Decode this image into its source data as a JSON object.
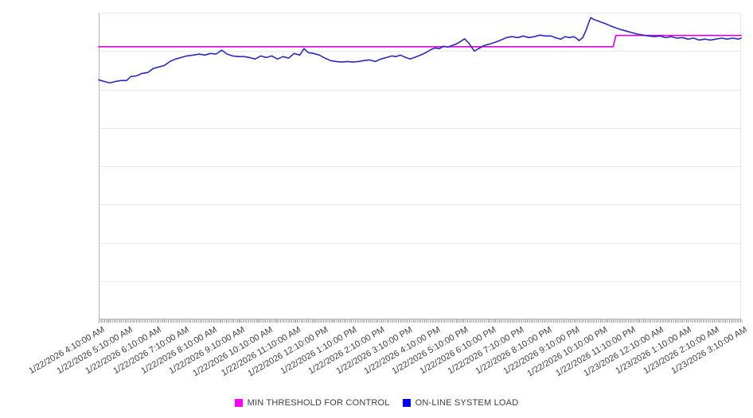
{
  "chart_data": {
    "type": "line",
    "title": "",
    "xlabel": "",
    "ylabel": "",
    "y_axis": {
      "tick_labels_visible": false,
      "estimated_range": [
        0,
        100
      ],
      "gridline_divisions": 8,
      "grid": "horizontal"
    },
    "legend_position": "bottom-center",
    "x_labels": [
      "1/22/2026 4:10:00 AM",
      "1/22/2026 5:10:00 AM",
      "1/22/2026 6:10:00 AM",
      "1/22/2026 7:10:00 AM",
      "1/22/2026 8:10:00 AM",
      "1/22/2026 9:10:00 AM",
      "1/22/2026 10:10:00 AM",
      "1/22/2026 11:10:00 AM",
      "1/22/2026 12:10:00 PM",
      "1/22/2026 1:10:00 PM",
      "1/22/2026 2:10:00 PM",
      "1/22/2026 3:10:00 PM",
      "1/22/2026 4:10:00 PM",
      "1/22/2026 5:10:00 PM",
      "1/22/2026 6:10:00 PM",
      "1/22/2026 7:10:00 PM",
      "1/22/2026 8:10:00 PM",
      "1/22/2026 9:10:00 PM",
      "1/22/2026 10:10:00 PM",
      "1/22/2026 11:10:00 PM",
      "1/23/2026 12:10:00 AM",
      "1/23/2026 1:10:00 AM",
      "1/23/2026 2:10:00 AM",
      "1/23/2026 3:10:00 AM"
    ],
    "x_unit_hours_per_label": 1,
    "series": [
      {
        "name": "MIN THRESHOLD FOR CONTROL",
        "color": "#DB00DB",
        "legend_color": "#FF00FF",
        "shape": "step",
        "points": [
          [
            0,
            88.9
          ],
          [
            18.42,
            88.9
          ],
          [
            18.52,
            92.6
          ],
          [
            23,
            92.6
          ]
        ]
      },
      {
        "name": "ON-LINE SYSTEM LOAD",
        "color": "#2A2AC0",
        "legend_color": "#0000EE",
        "shape": "jagged",
        "points": [
          [
            0,
            78.1
          ],
          [
            0.2,
            77.6
          ],
          [
            0.4,
            77.1
          ],
          [
            0.6,
            77.6
          ],
          [
            0.8,
            77.9
          ],
          [
            1,
            77.9
          ],
          [
            1.15,
            79.2
          ],
          [
            1.35,
            79.4
          ],
          [
            1.55,
            80.2
          ],
          [
            1.75,
            80.5
          ],
          [
            1.95,
            81.8
          ],
          [
            2.15,
            82.3
          ],
          [
            2.35,
            82.8
          ],
          [
            2.55,
            84.1
          ],
          [
            2.75,
            84.9
          ],
          [
            2.95,
            85.4
          ],
          [
            3.15,
            85.9
          ],
          [
            3.4,
            86.2
          ],
          [
            3.6,
            86.5
          ],
          [
            3.8,
            86.2
          ],
          [
            4,
            86.7
          ],
          [
            4.2,
            86.5
          ],
          [
            4.4,
            87.8
          ],
          [
            4.6,
            86.5
          ],
          [
            4.8,
            85.9
          ],
          [
            5,
            85.7
          ],
          [
            5.2,
            85.7
          ],
          [
            5.4,
            85.4
          ],
          [
            5.6,
            84.9
          ],
          [
            5.8,
            85.9
          ],
          [
            6,
            85.4
          ],
          [
            6.2,
            85.9
          ],
          [
            6.4,
            84.9
          ],
          [
            6.6,
            85.7
          ],
          [
            6.8,
            85.2
          ],
          [
            7,
            86.7
          ],
          [
            7.2,
            86.2
          ],
          [
            7.35,
            88.3
          ],
          [
            7.5,
            87
          ],
          [
            7.7,
            86.7
          ],
          [
            7.9,
            86.2
          ],
          [
            8.1,
            85.2
          ],
          [
            8.3,
            84.4
          ],
          [
            8.5,
            84.1
          ],
          [
            8.7,
            83.9
          ],
          [
            8.9,
            84.1
          ],
          [
            9.1,
            83.9
          ],
          [
            9.3,
            84.1
          ],
          [
            9.5,
            84.4
          ],
          [
            9.7,
            84.6
          ],
          [
            9.9,
            84.1
          ],
          [
            10.1,
            84.9
          ],
          [
            10.3,
            85.4
          ],
          [
            10.5,
            85.9
          ],
          [
            10.65,
            85.7
          ],
          [
            10.8,
            86.2
          ],
          [
            11,
            85.4
          ],
          [
            11.15,
            84.9
          ],
          [
            11.3,
            85.4
          ],
          [
            11.45,
            85.9
          ],
          [
            11.6,
            86.5
          ],
          [
            11.75,
            87.2
          ],
          [
            11.9,
            88
          ],
          [
            12.05,
            88.5
          ],
          [
            12.2,
            88.3
          ],
          [
            12.35,
            89.1
          ],
          [
            12.5,
            88.8
          ],
          [
            12.65,
            89.3
          ],
          [
            12.8,
            89.8
          ],
          [
            12.95,
            90.6
          ],
          [
            13.1,
            91.5
          ],
          [
            13.25,
            90.1
          ],
          [
            13.35,
            88.8
          ],
          [
            13.45,
            87.5
          ],
          [
            13.6,
            88.3
          ],
          [
            13.8,
            89.3
          ],
          [
            14,
            89.8
          ],
          [
            14.2,
            90.4
          ],
          [
            14.4,
            91.1
          ],
          [
            14.6,
            91.9
          ],
          [
            14.8,
            92.2
          ],
          [
            15,
            91.9
          ],
          [
            15.2,
            92.4
          ],
          [
            15.4,
            91.9
          ],
          [
            15.6,
            92.2
          ],
          [
            15.8,
            92.7
          ],
          [
            16,
            92.4
          ],
          [
            16.2,
            92.4
          ],
          [
            16.4,
            91.7
          ],
          [
            16.55,
            91.4
          ],
          [
            16.7,
            92.2
          ],
          [
            16.85,
            91.9
          ],
          [
            17,
            92.2
          ],
          [
            17.1,
            91.7
          ],
          [
            17.2,
            90.9
          ],
          [
            17.33,
            91.9
          ],
          [
            17.45,
            94.3
          ],
          [
            17.55,
            96.9
          ],
          [
            17.62,
            98.4
          ],
          [
            17.75,
            97.7
          ],
          [
            17.85,
            97.4
          ],
          [
            18,
            96.9
          ],
          [
            18.15,
            96.4
          ],
          [
            18.3,
            95.8
          ],
          [
            18.5,
            95.1
          ],
          [
            18.7,
            94.5
          ],
          [
            18.9,
            94
          ],
          [
            19.1,
            93.5
          ],
          [
            19.3,
            93
          ],
          [
            19.5,
            92.7
          ],
          [
            19.7,
            92.4
          ],
          [
            19.9,
            92.2
          ],
          [
            20.1,
            92.4
          ],
          [
            20.3,
            91.9
          ],
          [
            20.5,
            92.2
          ],
          [
            20.7,
            91.7
          ],
          [
            20.9,
            91.9
          ],
          [
            21.1,
            91.4
          ],
          [
            21.3,
            91.7
          ],
          [
            21.5,
            91.1
          ],
          [
            21.7,
            91.4
          ],
          [
            21.9,
            91.1
          ],
          [
            22.1,
            91.4
          ],
          [
            22.3,
            91.7
          ],
          [
            22.5,
            91.4
          ],
          [
            22.7,
            91.7
          ],
          [
            22.9,
            91.4
          ],
          [
            23,
            91.7
          ]
        ]
      }
    ]
  }
}
